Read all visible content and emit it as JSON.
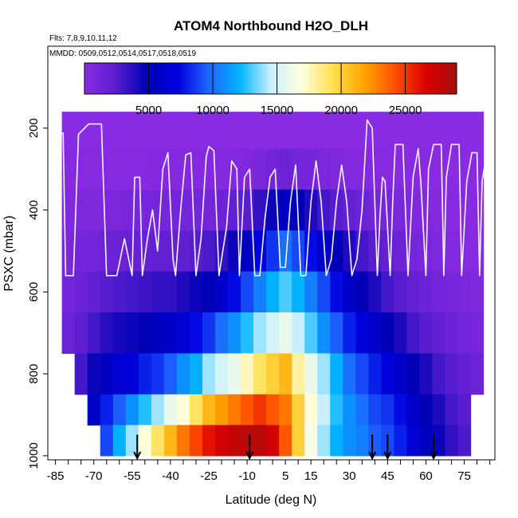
{
  "chart_data": {
    "type": "heatmap",
    "title": "ATOM4 Northbound H2O_DLH",
    "flights_label": "Flts: 7,8,9,10,11,12",
    "dates_label": "MMDD: 0509,0512,0514,0517,0518,0519",
    "xlabel": "Latitude (deg N)",
    "ylabel": "PSXC (mbar)",
    "xlim": [
      -88,
      87
    ],
    "ylim": [
      1010,
      0
    ],
    "x_ticks": [
      -85,
      -70,
      -55,
      -40,
      -25,
      -10,
      5,
      15,
      30,
      45,
      60,
      75
    ],
    "y_ticks": [
      200,
      400,
      600,
      800,
      1000
    ],
    "colorbar": {
      "range": [
        0,
        29000
      ],
      "ticks": [
        5000,
        10000,
        15000,
        20000,
        25000
      ],
      "colors": [
        "#8a2be2",
        "#5a1ecf",
        "#0000b4",
        "#0000e0",
        "#1e64ff",
        "#00b4ff",
        "#c8f0ff",
        "#ffffe0",
        "#ffe050",
        "#ffa500",
        "#ff5000",
        "#dc0000",
        "#a01010"
      ]
    },
    "lat_bins": [
      -85,
      -80,
      -75,
      -70,
      -65,
      -60,
      -55,
      -50,
      -45,
      -40,
      -35,
      -30,
      -25,
      -20,
      -15,
      -10,
      -5,
      0,
      5,
      10,
      15,
      20,
      25,
      30,
      35,
      40,
      45,
      50,
      55,
      60,
      65,
      70,
      75,
      80
    ],
    "pressure_bins": [
      200,
      300,
      400,
      500,
      600,
      700,
      800,
      900,
      950
    ],
    "h2o_grid": [
      [
        null,
        null,
        null,
        null,
        null,
        null,
        null,
        null,
        null
      ],
      [
        30,
        200,
        500,
        800,
        1000,
        1500,
        null,
        null,
        null
      ],
      [
        30,
        200,
        600,
        1000,
        1500,
        2200,
        3000,
        null,
        null
      ],
      [
        30,
        200,
        600,
        1200,
        2000,
        3000,
        4500,
        6000,
        null
      ],
      [
        30,
        200,
        700,
        1500,
        2500,
        3800,
        5500,
        8000,
        9000
      ],
      [
        30,
        250,
        800,
        1600,
        2800,
        4200,
        6500,
        9500,
        12000
      ],
      [
        30,
        250,
        900,
        1800,
        3000,
        4500,
        7000,
        11000,
        14000
      ],
      [
        30,
        250,
        900,
        1800,
        3200,
        5000,
        8000,
        12500,
        17000
      ],
      [
        30,
        300,
        1000,
        2000,
        3500,
        5500,
        8500,
        14000,
        19000
      ],
      [
        30,
        300,
        1000,
        2000,
        3500,
        6000,
        9500,
        16000,
        21000
      ],
      [
        30,
        300,
        1100,
        2200,
        4000,
        6500,
        11000,
        17000,
        23000
      ],
      [
        30,
        300,
        1200,
        2500,
        4500,
        7500,
        12000,
        19000,
        24500
      ],
      [
        30,
        300,
        1200,
        2800,
        5000,
        8500,
        14000,
        21000,
        26000
      ],
      [
        30,
        350,
        1500,
        3500,
        6000,
        10000,
        15000,
        22000,
        27000
      ],
      [
        30,
        400,
        2000,
        4500,
        7500,
        11000,
        16000,
        23000,
        27500
      ],
      [
        30,
        500,
        2500,
        5500,
        9000,
        12500,
        17500,
        24000,
        28000
      ],
      [
        30,
        800,
        3500,
        7000,
        10500,
        14000,
        19000,
        25000,
        28000
      ],
      [
        50,
        1200,
        4500,
        8500,
        12000,
        15000,
        20000,
        24000,
        27000
      ],
      [
        50,
        1500,
        5500,
        10000,
        13000,
        16000,
        21000,
        23000,
        24000
      ],
      [
        50,
        1200,
        5000,
        9000,
        12000,
        14500,
        18000,
        20000,
        20000
      ],
      [
        50,
        1000,
        4000,
        7500,
        10500,
        13000,
        16000,
        17000,
        16500
      ],
      [
        40,
        700,
        3000,
        6000,
        9000,
        11000,
        14000,
        14500,
        14000
      ],
      [
        40,
        500,
        2500,
        5000,
        7500,
        9500,
        12000,
        12500,
        12000
      ],
      [
        30,
        400,
        2000,
        4000,
        6000,
        8000,
        10000,
        11000,
        11000
      ],
      [
        30,
        300,
        1500,
        3000,
        5000,
        7000,
        9000,
        10000,
        10500
      ],
      [
        30,
        300,
        1200,
        2500,
        4000,
        6000,
        8000,
        9000,
        9500
      ],
      [
        30,
        250,
        1000,
        2000,
        3000,
        5000,
        7000,
        8500,
        9000
      ],
      [
        30,
        200,
        800,
        1500,
        2500,
        4000,
        6000,
        7500,
        8000
      ],
      [
        30,
        150,
        500,
        1000,
        2000,
        3000,
        5000,
        6000,
        6500
      ],
      [
        30,
        100,
        400,
        800,
        1500,
        2500,
        4000,
        5000,
        5500
      ],
      [
        30,
        80,
        300,
        600,
        1200,
        2000,
        3000,
        4000,
        4500
      ],
      [
        30,
        60,
        200,
        400,
        900,
        1500,
        2500,
        3000,
        3500
      ],
      [
        30,
        50,
        150,
        300,
        700,
        1200,
        2000,
        2500,
        2800
      ],
      [
        30,
        50,
        100,
        200,
        500,
        900,
        1500,
        null,
        null
      ]
    ],
    "profile_markers_lat": [
      -53,
      -9,
      39,
      45,
      63
    ],
    "flight_track": [
      [
        -88,
        620
      ],
      [
        -86,
        215
      ],
      [
        -82,
        212
      ],
      [
        -81,
        560
      ],
      [
        -78,
        560
      ],
      [
        -76,
        215
      ],
      [
        -72,
        190
      ],
      [
        -67,
        190
      ],
      [
        -65,
        560
      ],
      [
        -61,
        560
      ],
      [
        -58,
        470
      ],
      [
        -55,
        560
      ],
      [
        -54,
        320
      ],
      [
        -52,
        320
      ],
      [
        -51,
        560
      ],
      [
        -49,
        470
      ],
      [
        -47,
        400
      ],
      [
        -45,
        500
      ],
      [
        -43,
        300
      ],
      [
        -41,
        260
      ],
      [
        -39,
        520
      ],
      [
        -38,
        560
      ],
      [
        -36,
        400
      ],
      [
        -34,
        265
      ],
      [
        -32,
        260
      ],
      [
        -30,
        560
      ],
      [
        -28,
        470
      ],
      [
        -26,
        270
      ],
      [
        -25,
        245
      ],
      [
        -23,
        255
      ],
      [
        -21,
        560
      ],
      [
        -18,
        440
      ],
      [
        -16,
        280
      ],
      [
        -14,
        300
      ],
      [
        -13,
        560
      ],
      [
        -11,
        320
      ],
      [
        -9,
        300
      ],
      [
        -7,
        560
      ],
      [
        -5,
        560
      ],
      [
        -3,
        420
      ],
      [
        -1,
        320
      ],
      [
        1,
        300
      ],
      [
        3,
        540
      ],
      [
        5,
        540
      ],
      [
        7,
        380
      ],
      [
        9,
        290
      ],
      [
        11,
        560
      ],
      [
        13,
        560
      ],
      [
        15,
        380
      ],
      [
        17,
        280
      ],
      [
        19,
        380
      ],
      [
        21,
        560
      ],
      [
        23,
        520
      ],
      [
        25,
        380
      ],
      [
        27,
        290
      ],
      [
        29,
        380
      ],
      [
        31,
        560
      ],
      [
        33,
        520
      ],
      [
        35,
        400
      ],
      [
        37,
        180
      ],
      [
        39,
        200
      ],
      [
        41,
        560
      ],
      [
        42,
        420
      ],
      [
        43,
        320
      ],
      [
        44,
        330
      ],
      [
        46,
        560
      ],
      [
        47,
        380
      ],
      [
        48,
        240
      ],
      [
        51,
        240
      ],
      [
        53,
        560
      ],
      [
        55,
        320
      ],
      [
        57,
        250
      ],
      [
        58,
        330
      ],
      [
        60,
        560
      ],
      [
        61,
        300
      ],
      [
        63,
        240
      ],
      [
        66,
        240
      ],
      [
        67,
        560
      ],
      [
        68,
        320
      ],
      [
        70,
        240
      ],
      [
        73,
        240
      ],
      [
        74,
        560
      ],
      [
        76,
        330
      ],
      [
        78,
        260
      ],
      [
        80,
        260
      ],
      [
        81,
        560
      ],
      [
        82,
        330
      ],
      [
        84,
        250
      ],
      [
        85,
        1000
      ]
    ]
  }
}
